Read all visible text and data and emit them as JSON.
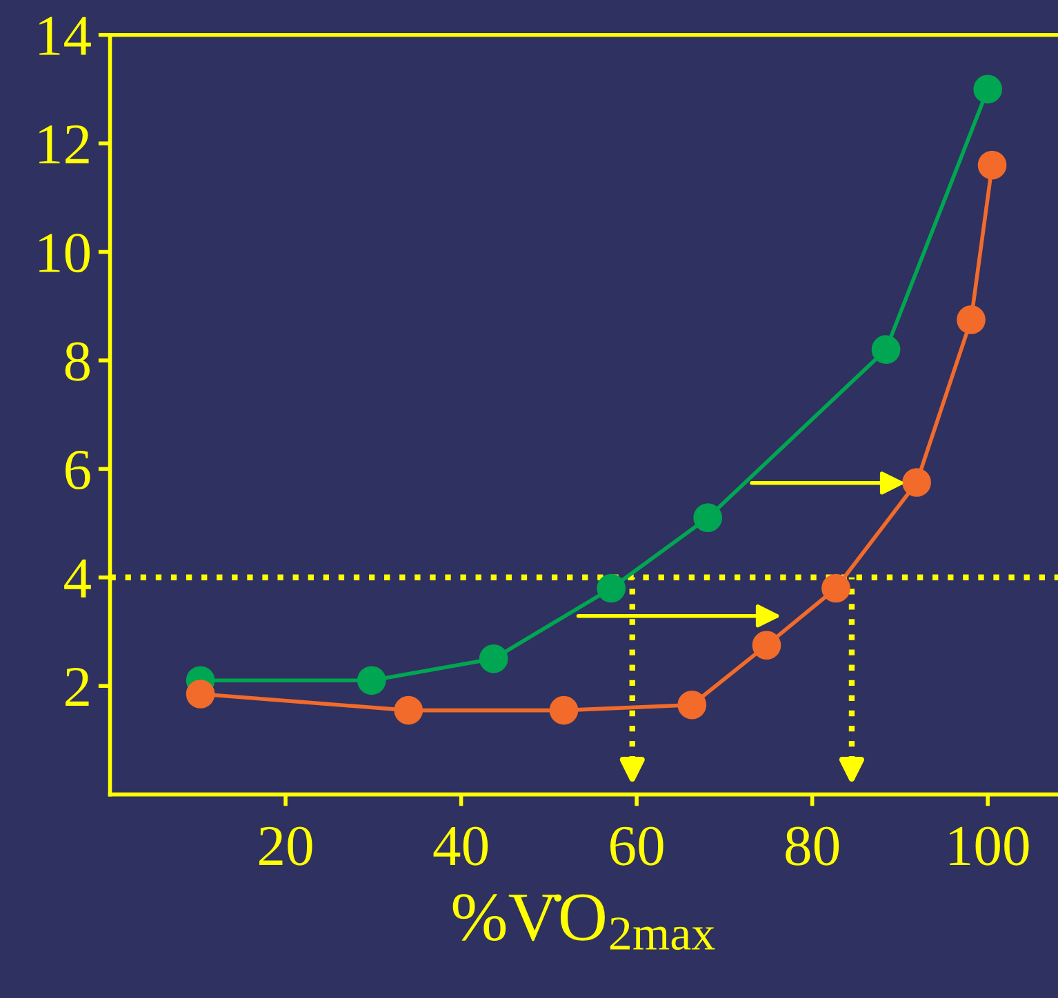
{
  "chart_data": {
    "type": "line",
    "xlabel": "%V̇O$_{2max}$",
    "series": [
      {
        "color": "#00a651",
        "x": [
          10.3,
          29.8,
          43.7,
          57.1,
          68.1,
          88.4,
          100
        ],
        "values": [
          2.1,
          2.1,
          2.5,
          3.8,
          5.1,
          8.2,
          13.0
        ]
      },
      {
        "color": "#f26b2a",
        "x": [
          10.3,
          34,
          51.7,
          66.3,
          74.8,
          82.7,
          91.9,
          98.1,
          100.5
        ],
        "values": [
          1.85,
          1.55,
          1.55,
          1.65,
          2.75,
          3.8,
          5.75,
          8.75,
          11.6
        ]
      }
    ],
    "marker": "circle",
    "line_style": "solid",
    "grid": false,
    "xlim": [
      0,
      108
    ],
    "ylim": [
      0,
      14
    ],
    "xticks": [
      20,
      40,
      60,
      80,
      100
    ],
    "yticks": [
      2,
      4,
      6,
      8,
      10,
      12,
      14
    ],
    "ref_lines": [
      {
        "axis": "y",
        "value": 4,
        "color": "#ffff00",
        "line_style": "dotted"
      },
      {
        "axis": "x",
        "value": 59.5,
        "color": "#ffff00",
        "line_style": "dotted"
      },
      {
        "axis": "x",
        "value": 84.5,
        "color": "#ffff00",
        "line_style": "dotted"
      }
    ]
  }
}
